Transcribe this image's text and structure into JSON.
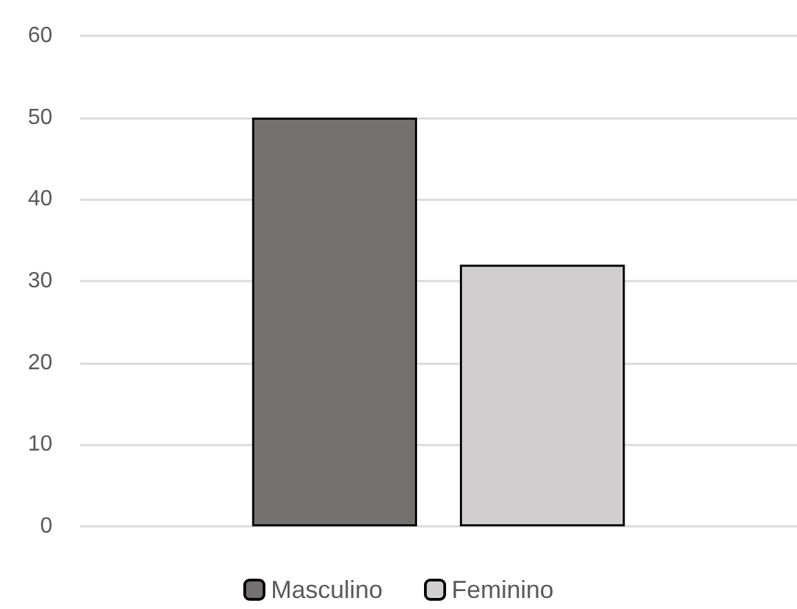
{
  "chart_data": {
    "type": "bar",
    "categories": [
      null
    ],
    "series": [
      {
        "name": "Masculino",
        "color": "#767171",
        "values": [
          50
        ]
      },
      {
        "name": "Feminino",
        "color": "#d0cece",
        "values": [
          32
        ]
      }
    ],
    "ylim": [
      0,
      60
    ],
    "yticks": [
      0,
      10,
      20,
      30,
      40,
      50,
      60
    ],
    "grid": "y",
    "legend": "bottom"
  }
}
